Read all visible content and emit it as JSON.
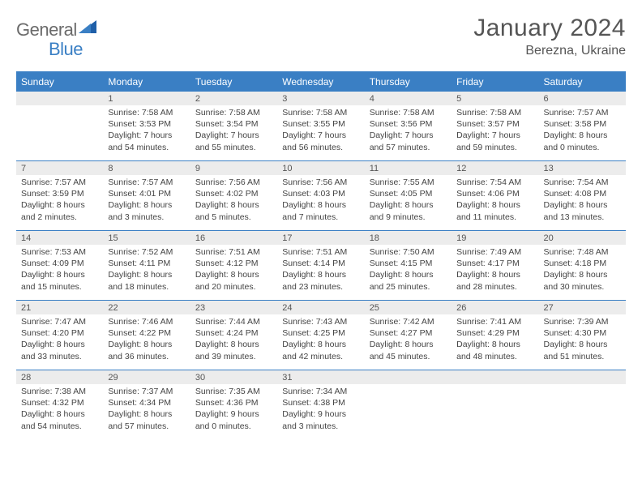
{
  "logo": {
    "general": "General",
    "blue": "Blue"
  },
  "title": "January 2024",
  "location": "Berezna, Ukraine",
  "headers": [
    "Sunday",
    "Monday",
    "Tuesday",
    "Wednesday",
    "Thursday",
    "Friday",
    "Saturday"
  ],
  "colors": {
    "primary": "#3a7fc4",
    "header_bg": "#ececec",
    "text": "#444444"
  },
  "weeks": [
    [
      {
        "n": "",
        "sr": "",
        "ss": "",
        "dl": ""
      },
      {
        "n": "1",
        "sr": "Sunrise: 7:58 AM",
        "ss": "Sunset: 3:53 PM",
        "dl": "Daylight: 7 hours and 54 minutes."
      },
      {
        "n": "2",
        "sr": "Sunrise: 7:58 AM",
        "ss": "Sunset: 3:54 PM",
        "dl": "Daylight: 7 hours and 55 minutes."
      },
      {
        "n": "3",
        "sr": "Sunrise: 7:58 AM",
        "ss": "Sunset: 3:55 PM",
        "dl": "Daylight: 7 hours and 56 minutes."
      },
      {
        "n": "4",
        "sr": "Sunrise: 7:58 AM",
        "ss": "Sunset: 3:56 PM",
        "dl": "Daylight: 7 hours and 57 minutes."
      },
      {
        "n": "5",
        "sr": "Sunrise: 7:58 AM",
        "ss": "Sunset: 3:57 PM",
        "dl": "Daylight: 7 hours and 59 minutes."
      },
      {
        "n": "6",
        "sr": "Sunrise: 7:57 AM",
        "ss": "Sunset: 3:58 PM",
        "dl": "Daylight: 8 hours and 0 minutes."
      }
    ],
    [
      {
        "n": "7",
        "sr": "Sunrise: 7:57 AM",
        "ss": "Sunset: 3:59 PM",
        "dl": "Daylight: 8 hours and 2 minutes."
      },
      {
        "n": "8",
        "sr": "Sunrise: 7:57 AM",
        "ss": "Sunset: 4:01 PM",
        "dl": "Daylight: 8 hours and 3 minutes."
      },
      {
        "n": "9",
        "sr": "Sunrise: 7:56 AM",
        "ss": "Sunset: 4:02 PM",
        "dl": "Daylight: 8 hours and 5 minutes."
      },
      {
        "n": "10",
        "sr": "Sunrise: 7:56 AM",
        "ss": "Sunset: 4:03 PM",
        "dl": "Daylight: 8 hours and 7 minutes."
      },
      {
        "n": "11",
        "sr": "Sunrise: 7:55 AM",
        "ss": "Sunset: 4:05 PM",
        "dl": "Daylight: 8 hours and 9 minutes."
      },
      {
        "n": "12",
        "sr": "Sunrise: 7:54 AM",
        "ss": "Sunset: 4:06 PM",
        "dl": "Daylight: 8 hours and 11 minutes."
      },
      {
        "n": "13",
        "sr": "Sunrise: 7:54 AM",
        "ss": "Sunset: 4:08 PM",
        "dl": "Daylight: 8 hours and 13 minutes."
      }
    ],
    [
      {
        "n": "14",
        "sr": "Sunrise: 7:53 AM",
        "ss": "Sunset: 4:09 PM",
        "dl": "Daylight: 8 hours and 15 minutes."
      },
      {
        "n": "15",
        "sr": "Sunrise: 7:52 AM",
        "ss": "Sunset: 4:11 PM",
        "dl": "Daylight: 8 hours and 18 minutes."
      },
      {
        "n": "16",
        "sr": "Sunrise: 7:51 AM",
        "ss": "Sunset: 4:12 PM",
        "dl": "Daylight: 8 hours and 20 minutes."
      },
      {
        "n": "17",
        "sr": "Sunrise: 7:51 AM",
        "ss": "Sunset: 4:14 PM",
        "dl": "Daylight: 8 hours and 23 minutes."
      },
      {
        "n": "18",
        "sr": "Sunrise: 7:50 AM",
        "ss": "Sunset: 4:15 PM",
        "dl": "Daylight: 8 hours and 25 minutes."
      },
      {
        "n": "19",
        "sr": "Sunrise: 7:49 AM",
        "ss": "Sunset: 4:17 PM",
        "dl": "Daylight: 8 hours and 28 minutes."
      },
      {
        "n": "20",
        "sr": "Sunrise: 7:48 AM",
        "ss": "Sunset: 4:18 PM",
        "dl": "Daylight: 8 hours and 30 minutes."
      }
    ],
    [
      {
        "n": "21",
        "sr": "Sunrise: 7:47 AM",
        "ss": "Sunset: 4:20 PM",
        "dl": "Daylight: 8 hours and 33 minutes."
      },
      {
        "n": "22",
        "sr": "Sunrise: 7:46 AM",
        "ss": "Sunset: 4:22 PM",
        "dl": "Daylight: 8 hours and 36 minutes."
      },
      {
        "n": "23",
        "sr": "Sunrise: 7:44 AM",
        "ss": "Sunset: 4:24 PM",
        "dl": "Daylight: 8 hours and 39 minutes."
      },
      {
        "n": "24",
        "sr": "Sunrise: 7:43 AM",
        "ss": "Sunset: 4:25 PM",
        "dl": "Daylight: 8 hours and 42 minutes."
      },
      {
        "n": "25",
        "sr": "Sunrise: 7:42 AM",
        "ss": "Sunset: 4:27 PM",
        "dl": "Daylight: 8 hours and 45 minutes."
      },
      {
        "n": "26",
        "sr": "Sunrise: 7:41 AM",
        "ss": "Sunset: 4:29 PM",
        "dl": "Daylight: 8 hours and 48 minutes."
      },
      {
        "n": "27",
        "sr": "Sunrise: 7:39 AM",
        "ss": "Sunset: 4:30 PM",
        "dl": "Daylight: 8 hours and 51 minutes."
      }
    ],
    [
      {
        "n": "28",
        "sr": "Sunrise: 7:38 AM",
        "ss": "Sunset: 4:32 PM",
        "dl": "Daylight: 8 hours and 54 minutes."
      },
      {
        "n": "29",
        "sr": "Sunrise: 7:37 AM",
        "ss": "Sunset: 4:34 PM",
        "dl": "Daylight: 8 hours and 57 minutes."
      },
      {
        "n": "30",
        "sr": "Sunrise: 7:35 AM",
        "ss": "Sunset: 4:36 PM",
        "dl": "Daylight: 9 hours and 0 minutes."
      },
      {
        "n": "31",
        "sr": "Sunrise: 7:34 AM",
        "ss": "Sunset: 4:38 PM",
        "dl": "Daylight: 9 hours and 3 minutes."
      },
      {
        "n": "",
        "sr": "",
        "ss": "",
        "dl": ""
      },
      {
        "n": "",
        "sr": "",
        "ss": "",
        "dl": ""
      },
      {
        "n": "",
        "sr": "",
        "ss": "",
        "dl": ""
      }
    ]
  ]
}
